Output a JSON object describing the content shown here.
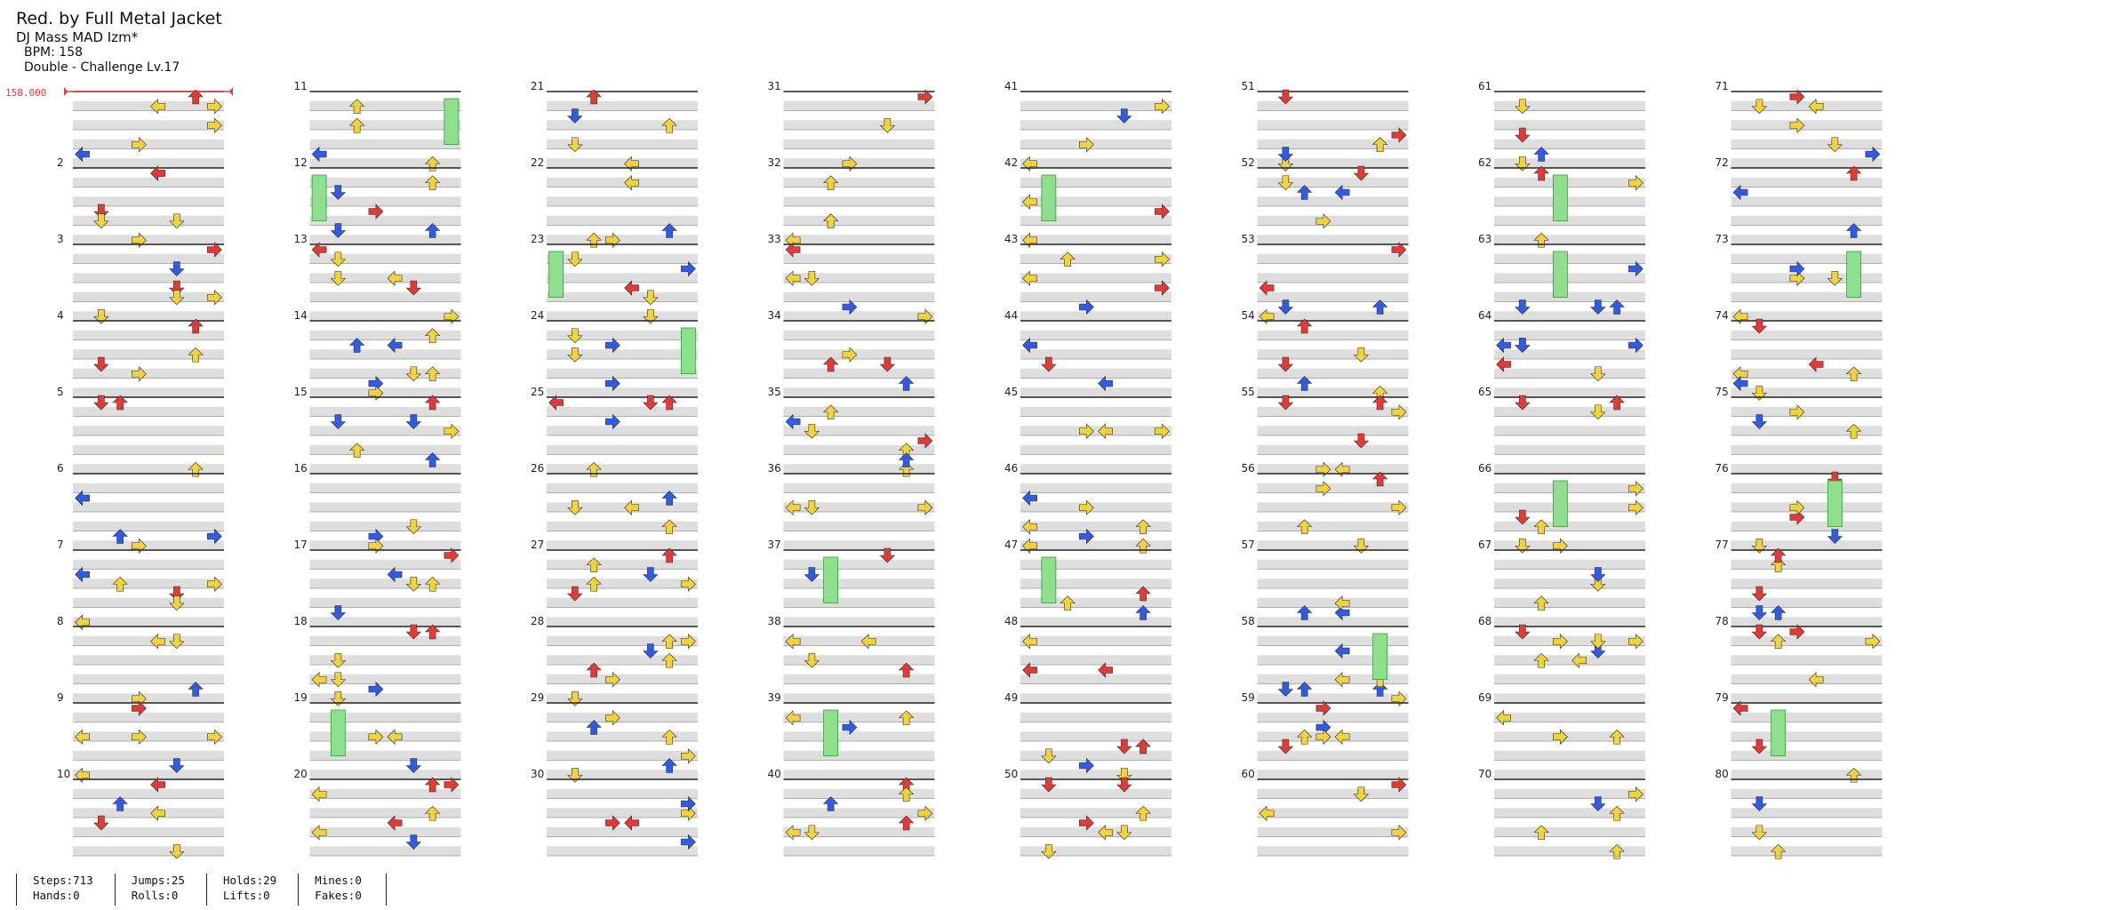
{
  "song": {
    "title": "Red. by Full Metal Jacket",
    "artist": "DJ Mass MAD Izm*",
    "bpm_text": "BPM: 158",
    "difficulty_text": "Double - Challenge  Lv.17"
  },
  "bpm_marker": {
    "label": "158.000"
  },
  "chart_data": {
    "type": "table",
    "measures_per_column": 10,
    "lanes_per_measure": 8,
    "measure_numbers": [
      "",
      "2",
      "3",
      "4",
      "5",
      "6",
      "7",
      "8",
      "9",
      "10",
      "11",
      "12",
      "13",
      "14",
      "15",
      "16",
      "17",
      "18",
      "19",
      "20",
      "21",
      "22",
      "23",
      "24",
      "25",
      "26",
      "27",
      "28",
      "29",
      "30",
      "31",
      "32",
      "33",
      "34",
      "35",
      "36",
      "37",
      "38",
      "39",
      "40",
      "41",
      "42",
      "43",
      "44",
      "45",
      "46",
      "47",
      "48",
      "49",
      "50",
      "51",
      "52",
      "53",
      "54",
      "55",
      "56",
      "57",
      "58",
      "59",
      "60",
      "61",
      "62",
      "63",
      "64",
      "65",
      "66",
      "67",
      "68",
      "69",
      "70",
      "71",
      "72",
      "73",
      "74",
      "75",
      "76",
      "77",
      "78",
      "79",
      "80"
    ],
    "total_measures": 80
  },
  "colors": {
    "quarter": "#e53935",
    "eighth": "#2f5be8",
    "sixteenth": "#f2d43a",
    "hold": "#8ee08e",
    "stripe": "#dedede",
    "line": "#555555"
  },
  "stats": {
    "steps": "Steps:713",
    "hands": "Hands:0",
    "jumps": "Jumps:25",
    "rolls": "Rolls:0",
    "holds": "Holds:29",
    "lifts": "Lifts:0",
    "mines": "Mines:0",
    "fakes": "Fakes:0"
  }
}
